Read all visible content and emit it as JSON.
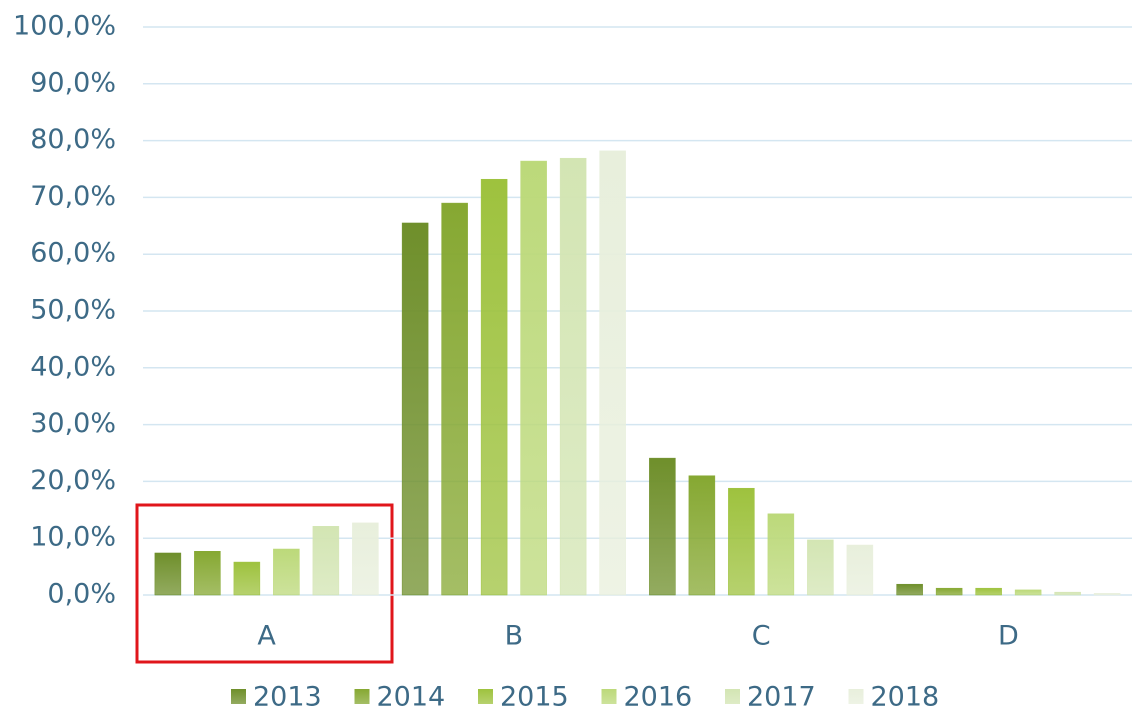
{
  "chart_data": {
    "type": "bar",
    "categories": [
      "A",
      "B",
      "C",
      "D"
    ],
    "series": [
      {
        "name": "2013",
        "color": "#6f8f2b",
        "values": [
          7.4,
          65.5,
          24.1,
          1.9
        ]
      },
      {
        "name": "2014",
        "color": "#86a832",
        "values": [
          7.7,
          69.0,
          21.0,
          1.2
        ]
      },
      {
        "name": "2015",
        "color": "#9ec23e",
        "values": [
          5.8,
          73.2,
          18.8,
          1.2
        ]
      },
      {
        "name": "2016",
        "color": "#bcd97a",
        "values": [
          8.1,
          76.4,
          14.3,
          0.9
        ]
      },
      {
        "name": "2017",
        "color": "#d3e5b3",
        "values": [
          12.1,
          76.9,
          9.7,
          0.5
        ]
      },
      {
        "name": "2018",
        "color": "#e8efdc",
        "values": [
          12.7,
          78.2,
          8.8,
          0.3
        ]
      }
    ],
    "ylim": [
      0,
      100
    ],
    "yticks": [
      {
        "value": 0,
        "label": "0,0%"
      },
      {
        "value": 10,
        "label": "10,0%"
      },
      {
        "value": 20,
        "label": "20,0%"
      },
      {
        "value": 30,
        "label": "30,0%"
      },
      {
        "value": 40,
        "label": "40,0%"
      },
      {
        "value": 50,
        "label": "50,0%"
      },
      {
        "value": 60,
        "label": "60,0%"
      },
      {
        "value": 70,
        "label": "70,0%"
      },
      {
        "value": 80,
        "label": "80,0%"
      },
      {
        "value": 90,
        "label": "90,0%"
      },
      {
        "value": 100,
        "label": "100,0%"
      }
    ],
    "grid": true,
    "legend": "bottom"
  }
}
